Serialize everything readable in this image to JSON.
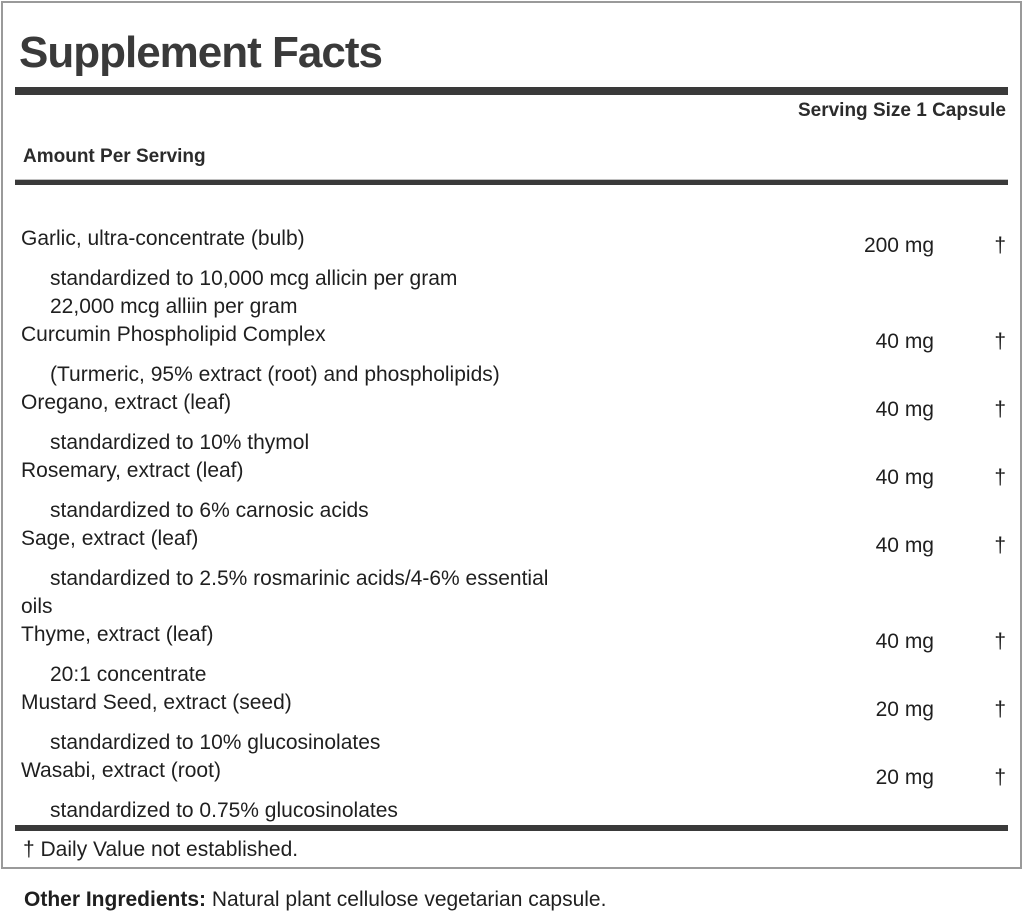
{
  "panel": {
    "title": "Supplement Facts",
    "serving_size": "Serving Size 1 Capsule",
    "amount_per_serving_label": "Amount Per Serving",
    "footnote": "† Daily Value not established.",
    "colors": {
      "bar": "#3a3a3a",
      "border": "#9a9a9a",
      "title": "#3a3a3a",
      "text": "#1f1f1f"
    },
    "ingredients": [
      {
        "name": "Garlic, ultra-concentrate (bulb)",
        "amount": "200 mg",
        "daily_value": "†",
        "details": [
          "standardized to 10,000 mcg allicin per gram",
          "22,000 mcg alliin per gram"
        ]
      },
      {
        "name": "Curcumin Phospholipid Complex",
        "amount": "40 mg",
        "daily_value": "†",
        "details": [
          "(Turmeric, 95% extract (root) and phospholipids)"
        ]
      },
      {
        "name": "Oregano, extract (leaf)",
        "amount": "40 mg",
        "daily_value": "†",
        "details": [
          "standardized to 10% thymol"
        ]
      },
      {
        "name": "Rosemary, extract (leaf)",
        "amount": "40 mg",
        "daily_value": "†",
        "details": [
          "standardized to 6% carnosic acids"
        ]
      },
      {
        "name": "Sage, extract (leaf)",
        "amount": "40 mg",
        "daily_value": "†",
        "details": [
          "standardized to 2.5% rosmarinic acids/4-6% essential",
          "oils"
        ]
      },
      {
        "name": "Thyme, extract (leaf)",
        "amount": "40 mg",
        "daily_value": "†",
        "details": [
          "20:1 concentrate"
        ]
      },
      {
        "name": "Mustard Seed, extract (seed)",
        "amount": "20 mg",
        "daily_value": "†",
        "details": [
          "standardized to 10% glucosinolates"
        ]
      },
      {
        "name": "Wasabi, extract (root)",
        "amount": "20 mg",
        "daily_value": "†",
        "details": [
          "standardized to 0.75% glucosinolates"
        ]
      }
    ]
  },
  "other_ingredients": {
    "label": "Other Ingredients:",
    "text": " Natural plant cellulose vegetarian capsule."
  }
}
